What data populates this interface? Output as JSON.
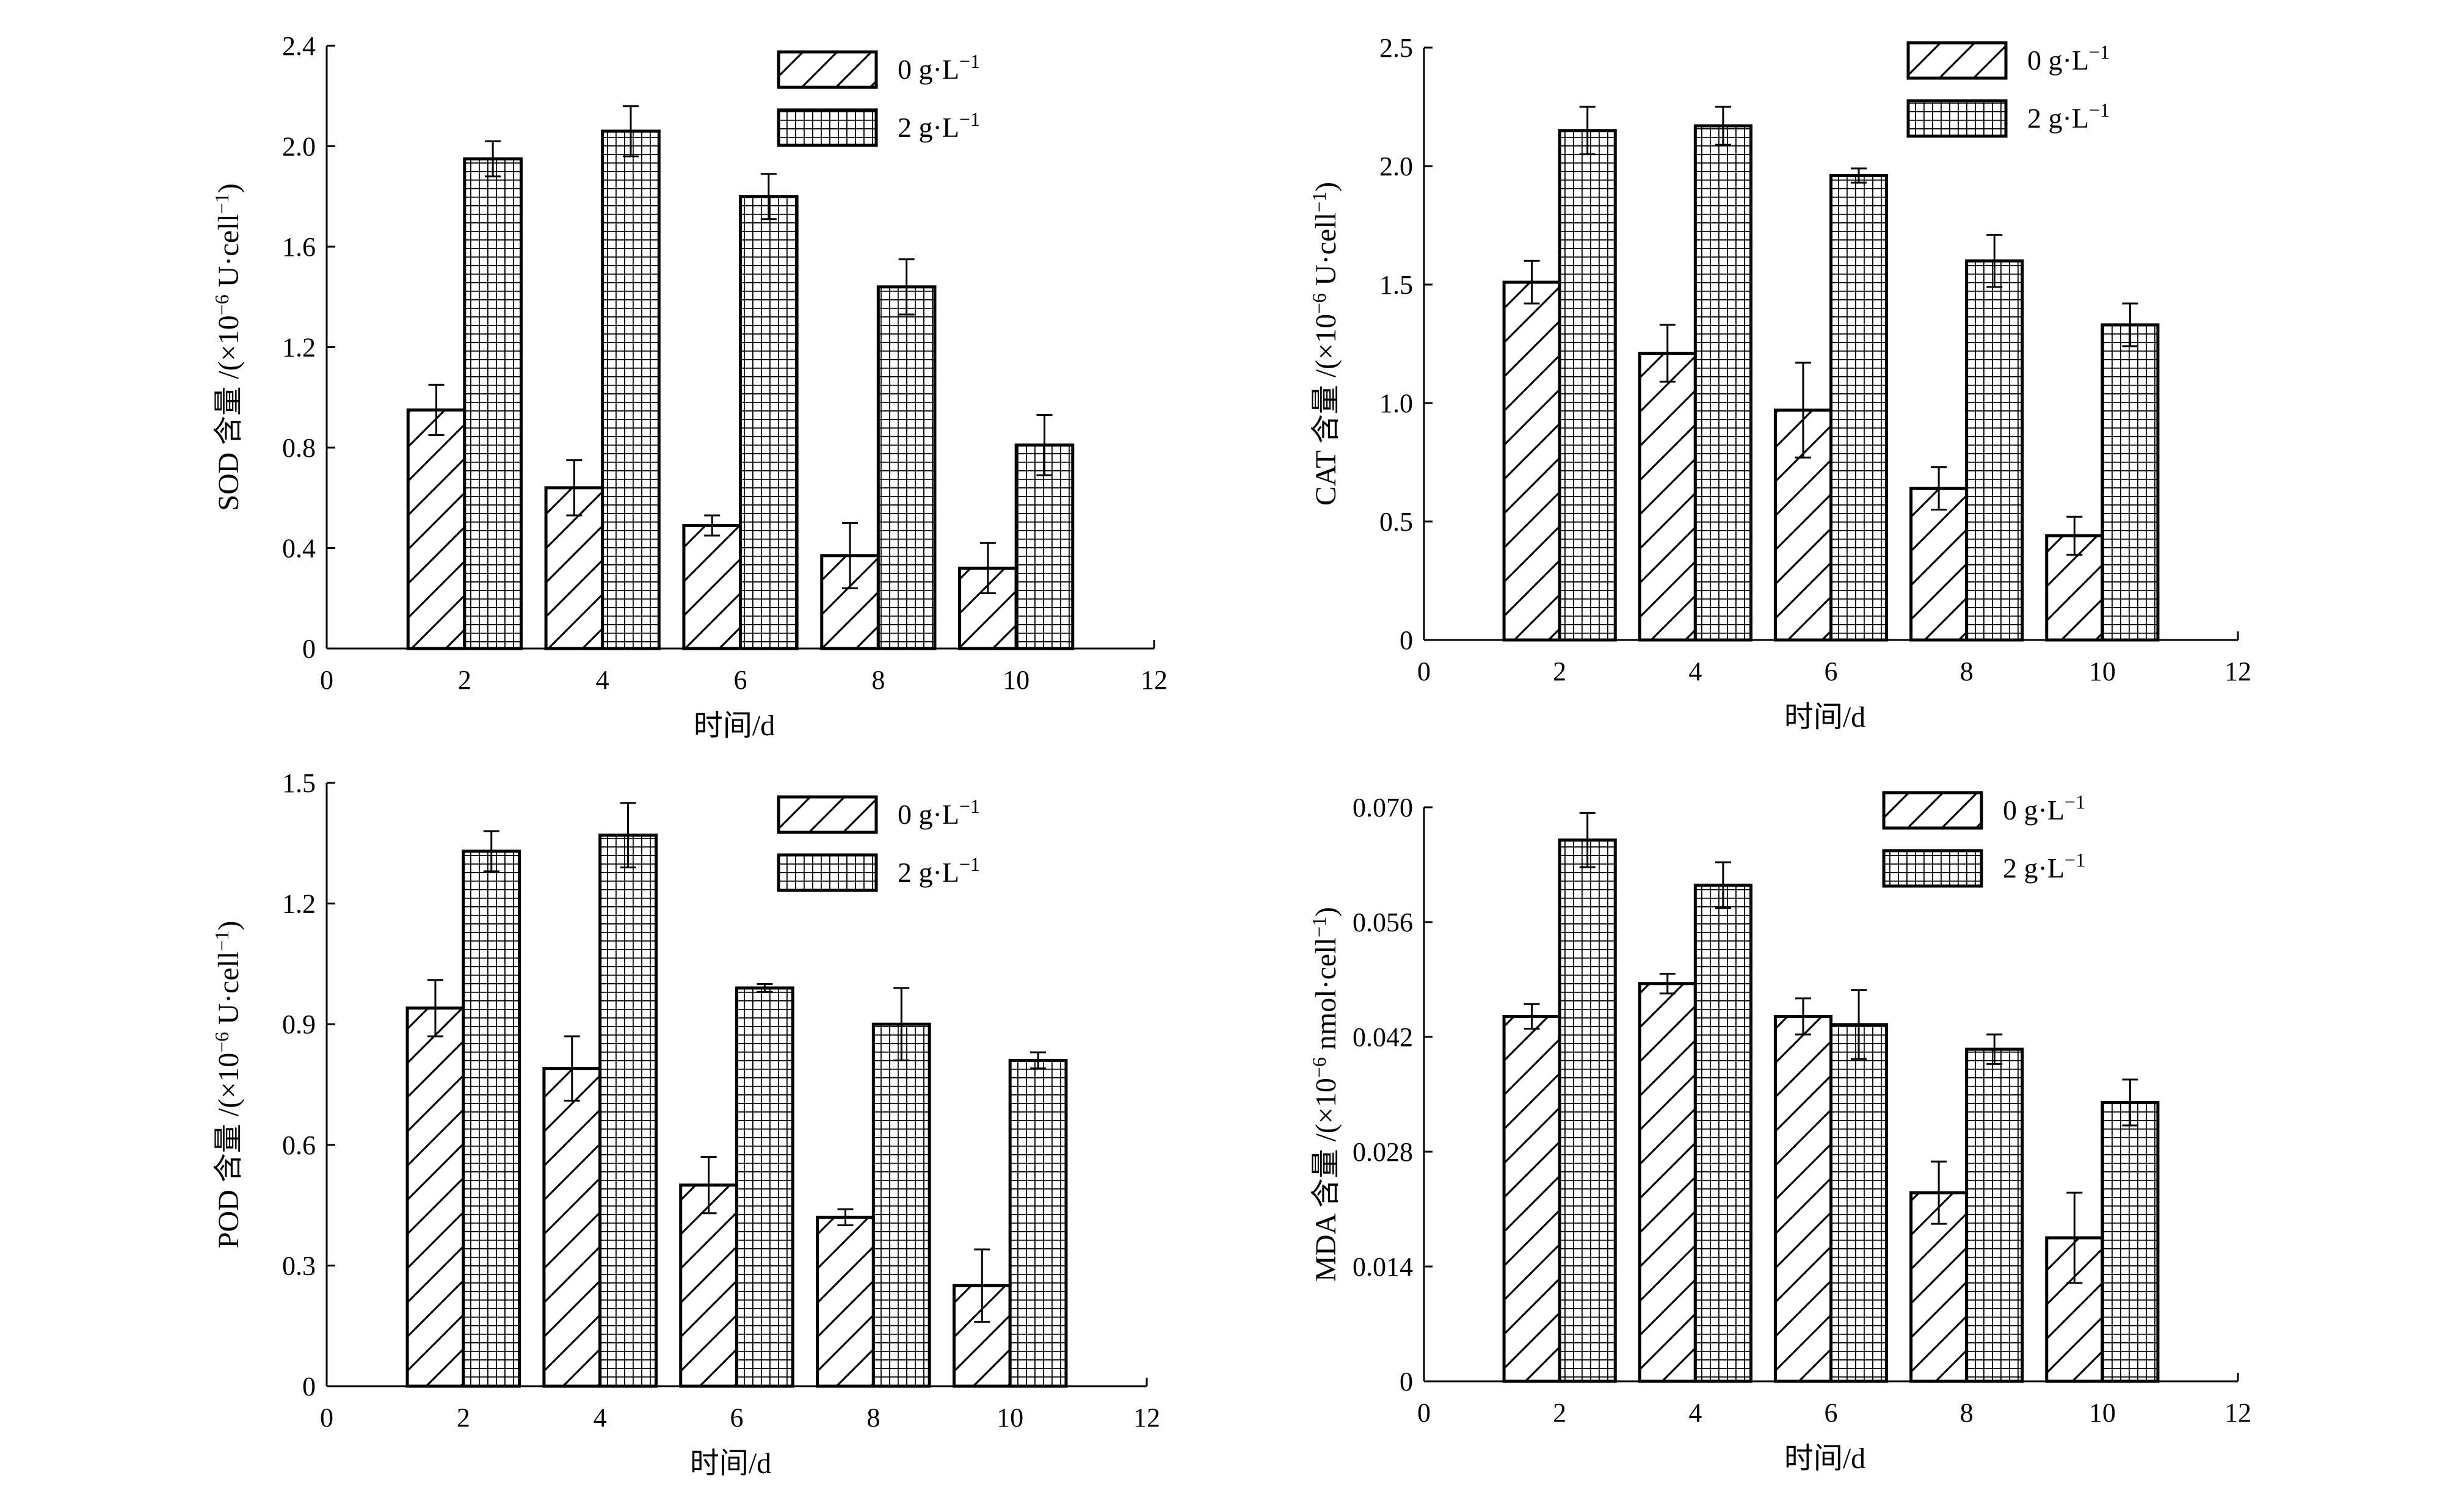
{
  "colors": {
    "ink": "#000000",
    "background": "#ffffff"
  },
  "legend": {
    "entries": [
      {
        "label": "0 g·L",
        "exponent": "−1",
        "pattern": "diagonal-hatch"
      },
      {
        "label": "2 g·L",
        "exponent": "−1",
        "pattern": "grid-hatch"
      }
    ]
  },
  "chart_data": [
    {
      "id": "sod",
      "type": "bar",
      "xlabel": "时间/d",
      "ylabel": {
        "prefix": "SOD 含量 /(×10",
        "exp": "−6",
        "suffix": "U·cell",
        "exp2": "−1",
        "close": ")"
      },
      "xlim": [
        0,
        12
      ],
      "xticks": [
        "0",
        "2",
        "4",
        "6",
        "8",
        "10",
        "12"
      ],
      "ylim": [
        0,
        2.4
      ],
      "yticks": [
        "0",
        "0.4",
        "0.8",
        "1.2",
        "1.6",
        "2.0",
        "2.4"
      ],
      "categories": [
        2,
        4,
        6,
        8,
        10
      ],
      "series": [
        {
          "name": "0 g·L−1",
          "values": [
            0.95,
            0.64,
            0.49,
            0.37,
            0.32
          ],
          "errors": [
            0.1,
            0.11,
            0.04,
            0.13,
            0.1
          ]
        },
        {
          "name": "2 g·L−1",
          "values": [
            1.95,
            2.06,
            1.8,
            1.44,
            0.81
          ],
          "errors": [
            0.07,
            0.1,
            0.09,
            0.11,
            0.12
          ]
        }
      ]
    },
    {
      "id": "cat",
      "type": "bar",
      "xlabel": "时间/d",
      "ylabel": {
        "prefix": "CAT 含量 /(×10",
        "exp": "−6",
        "suffix": "U·cell",
        "exp2": "−1",
        "close": ")"
      },
      "xlim": [
        0,
        12
      ],
      "xticks": [
        "0",
        "2",
        "4",
        "6",
        "8",
        "10",
        "12"
      ],
      "ylim": [
        0,
        2.5
      ],
      "yticks": [
        "0",
        "0.5",
        "1.0",
        "1.5",
        "2.0",
        "2.5"
      ],
      "categories": [
        2,
        4,
        6,
        8,
        10
      ],
      "series": [
        {
          "name": "0 g·L−1",
          "values": [
            1.51,
            1.21,
            0.97,
            0.64,
            0.44
          ],
          "errors": [
            0.09,
            0.12,
            0.2,
            0.09,
            0.08
          ]
        },
        {
          "name": "2 g·L−1",
          "values": [
            2.15,
            2.17,
            1.96,
            1.6,
            1.33
          ],
          "errors": [
            0.1,
            0.08,
            0.03,
            0.11,
            0.09
          ]
        }
      ]
    },
    {
      "id": "pod",
      "type": "bar",
      "xlabel": "时间/d",
      "ylabel": {
        "prefix": "POD 含量 /(×10",
        "exp": "−6",
        "suffix": "U·cell",
        "exp2": "−1",
        "close": ")"
      },
      "xlim": [
        0,
        12
      ],
      "xticks": [
        "0",
        "2",
        "4",
        "6",
        "8",
        "10",
        "12"
      ],
      "ylim": [
        0,
        1.5
      ],
      "yticks": [
        "0",
        "0.3",
        "0.6",
        "0.9",
        "1.2",
        "1.5"
      ],
      "categories": [
        2,
        4,
        6,
        8,
        10
      ],
      "series": [
        {
          "name": "0 g·L−1",
          "values": [
            0.94,
            0.79,
            0.5,
            0.42,
            0.25
          ],
          "errors": [
            0.07,
            0.08,
            0.07,
            0.02,
            0.09
          ]
        },
        {
          "name": "2 g·L−1",
          "values": [
            1.33,
            1.37,
            0.99,
            0.9,
            0.81
          ],
          "errors": [
            0.05,
            0.08,
            0.01,
            0.09,
            0.02
          ]
        }
      ]
    },
    {
      "id": "mda",
      "type": "bar",
      "xlabel": "时间/d",
      "ylabel": {
        "prefix": "MDA 含量 /(×10",
        "exp": "−6",
        "suffix": "nmol·cell",
        "exp2": "−1",
        "close": ")"
      },
      "xlim": [
        0,
        12
      ],
      "xticks": [
        "0",
        "2",
        "4",
        "6",
        "8",
        "10",
        "12"
      ],
      "ylim": [
        0,
        0.07
      ],
      "yticks": [
        "0",
        "0.014",
        "0.028",
        "0.042",
        "0.056",
        "0.070"
      ],
      "categories": [
        2,
        4,
        6,
        8,
        10
      ],
      "series": [
        {
          "name": "0 g·L−1",
          "values": [
            0.0445,
            0.0485,
            0.0445,
            0.023,
            0.0175
          ],
          "errors": [
            0.0015,
            0.0012,
            0.0022,
            0.0038,
            0.0055
          ]
        },
        {
          "name": "2 g·L−1",
          "values": [
            0.066,
            0.0605,
            0.0435,
            0.0405,
            0.034
          ],
          "errors": [
            0.0033,
            0.0028,
            0.0042,
            0.0018,
            0.0028
          ]
        }
      ]
    }
  ]
}
